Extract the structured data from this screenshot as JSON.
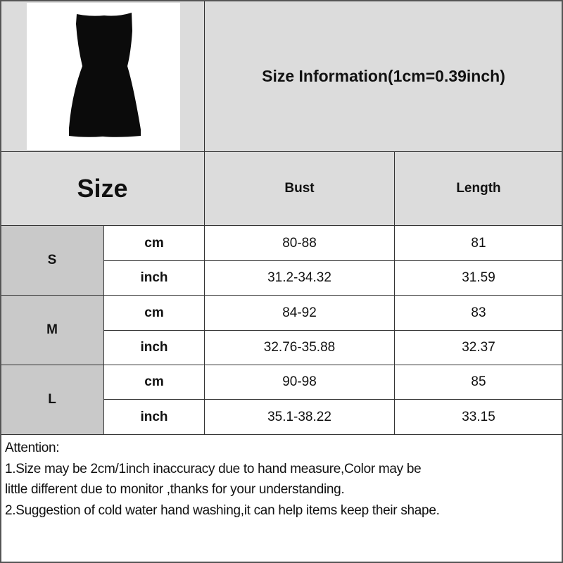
{
  "title": "Size Information(1cm=0.39inch)",
  "product_image": {
    "icon": "black-sleeveless-dress-image"
  },
  "header": {
    "size": "Size",
    "bust": "Bust",
    "length": "Length"
  },
  "rows": [
    {
      "size": "S",
      "cm": {
        "unit": "cm",
        "bust": "80-88",
        "length": "81"
      },
      "inch": {
        "unit": "inch",
        "bust": "31.2-34.32",
        "length": "31.59"
      }
    },
    {
      "size": "M",
      "cm": {
        "unit": "cm",
        "bust": "84-92",
        "length": "83"
      },
      "inch": {
        "unit": "inch",
        "bust": "32.76-35.88",
        "length": "32.37"
      }
    },
    {
      "size": "L",
      "cm": {
        "unit": "cm",
        "bust": "90-98",
        "length": "85"
      },
      "inch": {
        "unit": "inch",
        "bust": "35.1-38.22",
        "length": "33.15"
      }
    }
  ],
  "notes": {
    "heading": "Attention:",
    "line1a": "1.Size may be 2cm/1inch inaccuracy due to hand measure,Color may be",
    "line1b": "little different due to monitor ,thanks for your understanding.",
    "line2": "2.Suggestion of cold water hand washing,it can help items keep their shape."
  }
}
